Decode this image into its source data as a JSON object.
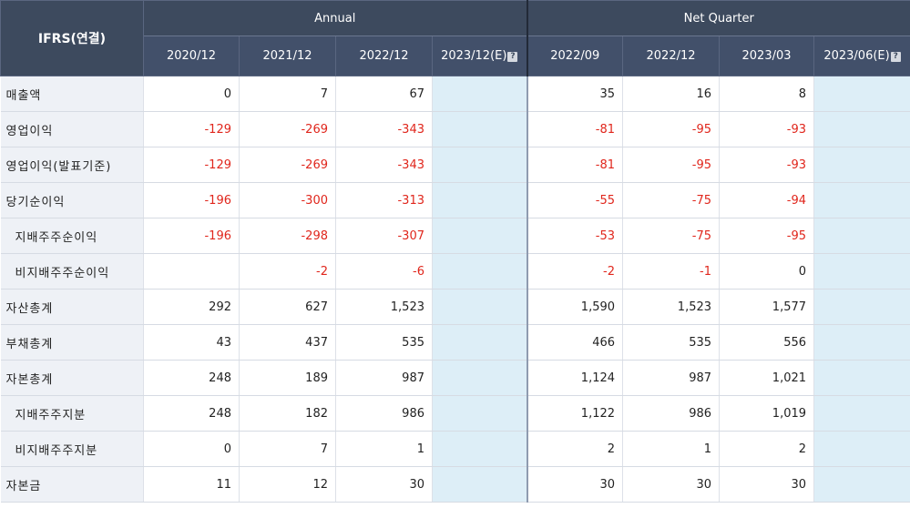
{
  "header": {
    "corner_label": "IFRS(연결)",
    "annual_label": "Annual",
    "quarter_label": "Net Quarter",
    "annual_periods": [
      "2020/12",
      "2021/12",
      "2022/12",
      "2023/12(E)"
    ],
    "quarter_periods": [
      "2022/09",
      "2022/12",
      "2023/03",
      "2023/06(E)"
    ],
    "help_icon": "?"
  },
  "rows": [
    {
      "label": "매출액",
      "annual": [
        "0",
        "7",
        "67",
        ""
      ],
      "quarter": [
        "35",
        "16",
        "8",
        ""
      ]
    },
    {
      "label": "영업이익",
      "annual": [
        "-129",
        "-269",
        "-343",
        ""
      ],
      "quarter": [
        "-81",
        "-95",
        "-93",
        ""
      ]
    },
    {
      "label": "영업이익(발표기준)",
      "annual": [
        "-129",
        "-269",
        "-343",
        ""
      ],
      "quarter": [
        "-81",
        "-95",
        "-93",
        ""
      ]
    },
    {
      "label": "당기순이익",
      "annual": [
        "-196",
        "-300",
        "-313",
        ""
      ],
      "quarter": [
        "-55",
        "-75",
        "-94",
        ""
      ]
    },
    {
      "label": "지배주주순이익",
      "annual": [
        "-196",
        "-298",
        "-307",
        ""
      ],
      "quarter": [
        "-53",
        "-75",
        "-95",
        ""
      ]
    },
    {
      "label": "비지배주주순이익",
      "annual": [
        "",
        "-2",
        "-6",
        ""
      ],
      "quarter": [
        "-2",
        "-1",
        "0",
        ""
      ]
    },
    {
      "label": "자산총계",
      "annual": [
        "292",
        "627",
        "1,523",
        ""
      ],
      "quarter": [
        "1,590",
        "1,523",
        "1,577",
        ""
      ]
    },
    {
      "label": "부채총계",
      "annual": [
        "43",
        "437",
        "535",
        ""
      ],
      "quarter": [
        "466",
        "535",
        "556",
        ""
      ]
    },
    {
      "label": "자본총계",
      "annual": [
        "248",
        "189",
        "987",
        ""
      ],
      "quarter": [
        "1,124",
        "987",
        "1,021",
        ""
      ]
    },
    {
      "label": "지배주주지분",
      "annual": [
        "248",
        "182",
        "986",
        ""
      ],
      "quarter": [
        "1,122",
        "986",
        "1,019",
        ""
      ]
    },
    {
      "label": "비지배주주지분",
      "annual": [
        "0",
        "7",
        "1",
        ""
      ],
      "quarter": [
        "2",
        "1",
        "2",
        ""
      ]
    },
    {
      "label": "자본금",
      "annual": [
        "11",
        "12",
        "30",
        ""
      ],
      "quarter": [
        "30",
        "30",
        "30",
        ""
      ]
    }
  ],
  "colors": {
    "header_bg": "#3d4a5e",
    "label_bg": "#eef1f6",
    "estimate_bg": "#ddeef7",
    "negative_text": "#e0261c"
  }
}
